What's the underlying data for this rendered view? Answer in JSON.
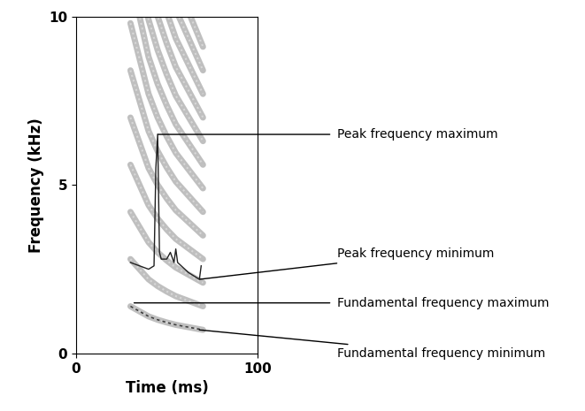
{
  "chart_data": {
    "type": "spectrogram",
    "xlabel": "Time (ms)",
    "ylabel": "Frequency (kHz)",
    "xlim": [
      0,
      100
    ],
    "xticks": [
      0,
      100
    ],
    "ylim": [
      0,
      10
    ],
    "yticks": [
      0,
      5,
      10
    ],
    "grid": false,
    "harmonics": 13,
    "fundamental": {
      "x": [
        30,
        35,
        40,
        45,
        50,
        55,
        60,
        65,
        70
      ],
      "values": [
        1.4,
        1.25,
        1.1,
        1.0,
        0.92,
        0.85,
        0.8,
        0.75,
        0.7
      ]
    },
    "peak_frequency": {
      "x": [
        30,
        35,
        40,
        43,
        44,
        45,
        46,
        47,
        50,
        52,
        54,
        55,
        56,
        58,
        60,
        62,
        65,
        68,
        69
      ],
      "values": [
        2.7,
        2.6,
        2.5,
        2.6,
        5.5,
        6.5,
        3.0,
        2.8,
        2.8,
        3.0,
        2.7,
        3.1,
        2.7,
        2.6,
        2.5,
        2.4,
        2.3,
        2.2,
        2.6
      ]
    },
    "annotations": [
      {
        "text": "Peak frequency maximum",
        "x": 45,
        "y": 6.5
      },
      {
        "text": "Peak frequency minimum",
        "x": 68,
        "y": 2.2
      },
      {
        "text": "Fundamental frequency maximum",
        "x": 32,
        "y": 1.5
      },
      {
        "text": "Fundamental frequency minimum",
        "x": 68,
        "y": 0.7
      }
    ]
  }
}
